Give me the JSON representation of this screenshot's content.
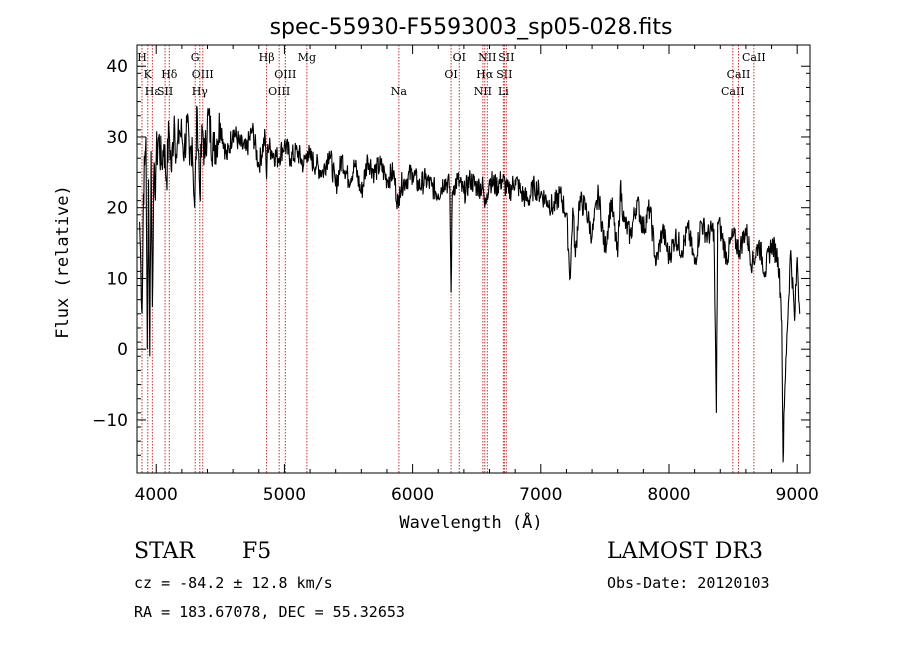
{
  "chart_data": {
    "type": "line",
    "title": "spec-55930-F5593003_sp05-028.fits",
    "xlabel": "Wavelength (Å)",
    "ylabel": "Flux (relative)",
    "xlim": [
      3850,
      9100
    ],
    "ylim": [
      -17.5,
      43
    ],
    "xticks": [
      4000,
      5000,
      6000,
      7000,
      8000,
      9000
    ],
    "yticks": [
      -10,
      0,
      10,
      20,
      30,
      40
    ],
    "series": [
      {
        "name": "spectrum",
        "x": [
          3870,
          3880,
          3890,
          3900,
          3910,
          3920,
          3930,
          3940,
          3950,
          3960,
          3970,
          3980,
          3990,
          4000,
          4020,
          4040,
          4060,
          4080,
          4100,
          4120,
          4140,
          4160,
          4180,
          4200,
          4220,
          4240,
          4260,
          4280,
          4300,
          4320,
          4340,
          4360,
          4380,
          4400,
          4450,
          4500,
          4550,
          4600,
          4650,
          4700,
          4750,
          4800,
          4850,
          4861,
          4870,
          4900,
          4950,
          5000,
          5050,
          5100,
          5150,
          5180,
          5200,
          5250,
          5300,
          5350,
          5400,
          5450,
          5500,
          5550,
          5600,
          5650,
          5700,
          5750,
          5800,
          5850,
          5890,
          5900,
          5950,
          6000,
          6050,
          6100,
          6150,
          6200,
          6250,
          6290,
          6300,
          6310,
          6320,
          6350,
          6400,
          6450,
          6500,
          6550,
          6563,
          6580,
          6600,
          6650,
          6700,
          6750,
          6800,
          6850,
          6900,
          6950,
          7000,
          7050,
          7100,
          7150,
          7200,
          7230,
          7250,
          7270,
          7300,
          7350,
          7400,
          7450,
          7500,
          7550,
          7600,
          7620,
          7650,
          7700,
          7750,
          7800,
          7850,
          7900,
          7950,
          8000,
          8050,
          8100,
          8150,
          8200,
          8250,
          8300,
          8350,
          8370,
          8380,
          8400,
          8450,
          8500,
          8550,
          8600,
          8650,
          8700,
          8750,
          8800,
          8850,
          8870,
          8880,
          8890,
          8900,
          8920,
          8950,
          8980,
          9000,
          9020
        ],
        "values": [
          18,
          12,
          5,
          22,
          26,
          30,
          0,
          24,
          -1,
          28,
          6,
          24,
          22,
          27,
          30,
          26,
          29,
          24,
          31,
          25,
          33,
          27,
          31,
          30,
          28,
          32,
          26,
          30,
          20,
          34,
          22,
          31,
          27,
          33,
          28,
          32,
          27,
          31,
          29,
          28,
          31,
          26,
          30,
          24,
          29,
          28,
          27,
          29,
          27,
          28,
          26,
          28,
          27,
          26,
          25,
          28,
          23,
          27,
          24,
          26,
          22,
          27,
          25,
          26,
          24,
          25,
          20,
          23,
          24,
          25,
          23,
          24,
          23,
          22,
          24,
          23,
          8,
          22,
          23,
          24,
          22,
          24,
          23,
          23,
          20,
          22,
          24,
          23,
          24,
          22,
          24,
          22,
          21,
          23,
          22,
          21,
          20,
          22,
          19,
          10,
          20,
          13,
          21,
          20,
          16,
          22,
          14,
          21,
          13,
          23,
          18,
          16,
          21,
          17,
          20,
          12,
          17,
          13,
          16,
          14,
          17,
          12,
          18,
          16,
          17,
          -9,
          18,
          17,
          13,
          16,
          14,
          17,
          12,
          15,
          11,
          15,
          13,
          8,
          4,
          -16,
          -8,
          2,
          14,
          4,
          13,
          5
        ],
        "color": "#000000"
      }
    ],
    "line_markers": [
      {
        "label": "H",
        "x": 3889,
        "row": 0
      },
      {
        "label": "K",
        "x": 3934,
        "row": 1
      },
      {
        "label": "Hε",
        "x": 3970,
        "row": 2
      },
      {
        "label": "SII",
        "x": 4069,
        "row": 2
      },
      {
        "label": "Hδ",
        "x": 4102,
        "row": 1
      },
      {
        "label": "G",
        "x": 4304,
        "row": 0
      },
      {
        "label": "OIII",
        "x": 4363,
        "row": 1
      },
      {
        "label": "Hγ",
        "x": 4340,
        "row": 2
      },
      {
        "label": "Hβ",
        "x": 4861,
        "row": 0
      },
      {
        "label": "OIII",
        "x": 4959,
        "row": 2
      },
      {
        "label": "OIII",
        "x": 5007,
        "row": 1
      },
      {
        "label": "Mg",
        "x": 5175,
        "row": 0
      },
      {
        "label": "Na",
        "x": 5893,
        "row": 2
      },
      {
        "label": "OI",
        "x": 6300,
        "row": 1
      },
      {
        "label": "OI",
        "x": 6364,
        "row": 0
      },
      {
        "label": "NII",
        "x": 6548,
        "row": 2
      },
      {
        "label": "NII",
        "x": 6583,
        "row": 0
      },
      {
        "label": "Hα",
        "x": 6563,
        "row": 1
      },
      {
        "label": "SII",
        "x": 6716,
        "row": 1
      },
      {
        "label": "SII",
        "x": 6731,
        "row": 0
      },
      {
        "label": "Li",
        "x": 6708,
        "row": 2
      },
      {
        "label": "CaII",
        "x": 8498,
        "row": 2
      },
      {
        "label": "CaII",
        "x": 8542,
        "row": 1
      },
      {
        "label": "CaII",
        "x": 8662,
        "row": 0
      }
    ],
    "marker_color": "#cc3333"
  },
  "info": {
    "class": "STAR",
    "subclass": "F5",
    "survey": "LAMOST DR3",
    "cz": "cz = -84.2 ± 12.8 km/s",
    "obs_date": "Obs-Date: 20120103",
    "coords": "RA = 183.67078, DEC =  55.32653"
  }
}
